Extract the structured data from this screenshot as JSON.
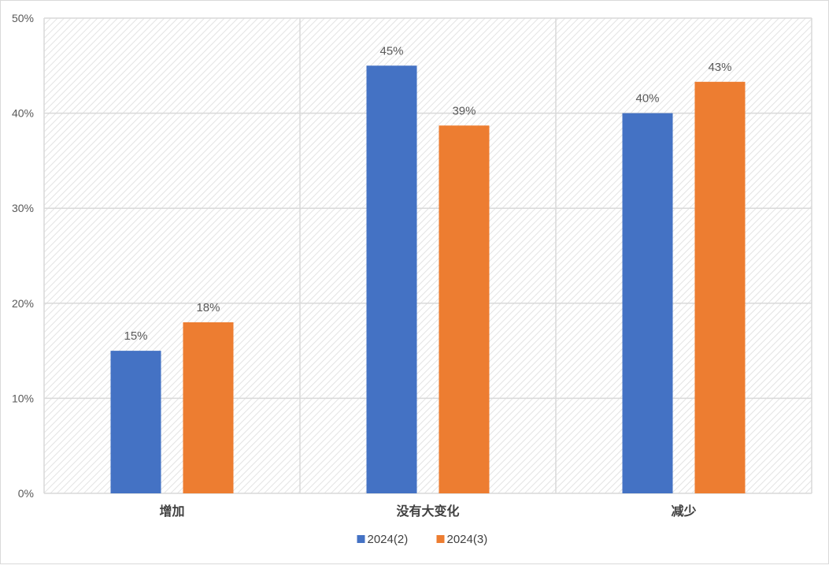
{
  "chart_data": {
    "type": "bar",
    "title": "",
    "xlabel": "",
    "ylabel": "",
    "categories": [
      "增加",
      "没有大变化",
      "减少"
    ],
    "series": [
      {
        "name": "2024(2)",
        "values": [
          15,
          45,
          40
        ],
        "labels": [
          "15%",
          "45%",
          "40%"
        ],
        "color": "#4472C4"
      },
      {
        "name": "2024(3)",
        "values": [
          18,
          38.7,
          43.3
        ],
        "labels": [
          "18%",
          "39%",
          "43%"
        ],
        "color": "#ED7D31"
      }
    ],
    "ylim": [
      0,
      50
    ],
    "yticks": [
      0,
      10,
      20,
      30,
      40,
      50
    ],
    "ytick_labels": [
      "0%",
      "10%",
      "20%",
      "30%",
      "40%",
      "50%"
    ],
    "grid": true,
    "legend_position": "bottom"
  }
}
